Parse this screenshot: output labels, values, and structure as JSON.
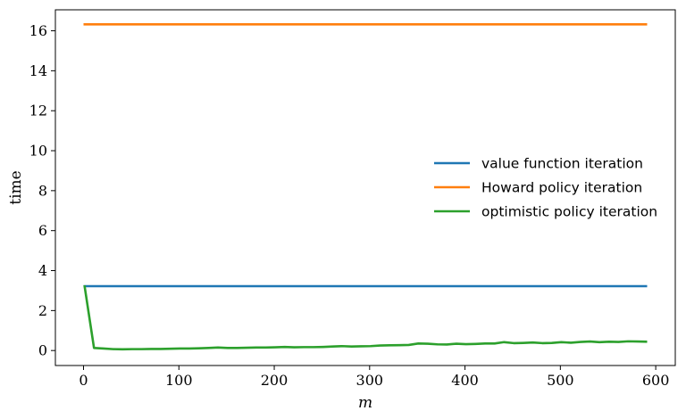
{
  "chart_data": {
    "type": "line",
    "title": "",
    "xlabel": "m",
    "ylabel": "time",
    "xlim": [
      -29.5,
      620.5
    ],
    "ylim": [
      -0.75,
      17.05
    ],
    "xticks": [
      0,
      100,
      200,
      300,
      400,
      500,
      600
    ],
    "yticks": [
      0,
      2,
      4,
      6,
      8,
      10,
      12,
      14,
      16
    ],
    "grid": false,
    "legend_position": "center-right",
    "series": [
      {
        "name": "value function iteration",
        "color": "#1f77b4",
        "x": [
          0,
          591
        ],
        "y": [
          3.22,
          3.22
        ]
      },
      {
        "name": "Howard policy iteration",
        "color": "#ff7f0e",
        "x": [
          0,
          591
        ],
        "y": [
          16.32,
          16.32
        ]
      },
      {
        "name": "optimistic policy iteration",
        "color": "#2ca02c",
        "x": [
          1,
          11,
          21,
          31,
          41,
          51,
          61,
          71,
          81,
          91,
          101,
          111,
          121,
          131,
          141,
          151,
          161,
          171,
          181,
          191,
          201,
          211,
          221,
          231,
          241,
          251,
          261,
          271,
          281,
          291,
          301,
          311,
          321,
          331,
          341,
          351,
          361,
          371,
          381,
          391,
          401,
          411,
          421,
          431,
          441,
          451,
          461,
          471,
          481,
          491,
          501,
          511,
          521,
          531,
          541,
          551,
          561,
          571,
          581,
          591
        ],
        "y": [
          3.26,
          0.13,
          0.1,
          0.07,
          0.06,
          0.07,
          0.07,
          0.08,
          0.08,
          0.09,
          0.1,
          0.1,
          0.11,
          0.13,
          0.15,
          0.13,
          0.13,
          0.14,
          0.15,
          0.15,
          0.16,
          0.18,
          0.16,
          0.17,
          0.17,
          0.18,
          0.2,
          0.22,
          0.2,
          0.21,
          0.22,
          0.25,
          0.26,
          0.27,
          0.28,
          0.35,
          0.34,
          0.31,
          0.3,
          0.34,
          0.32,
          0.33,
          0.35,
          0.35,
          0.42,
          0.37,
          0.38,
          0.4,
          0.37,
          0.38,
          0.42,
          0.39,
          0.43,
          0.45,
          0.42,
          0.44,
          0.43,
          0.46,
          0.45,
          0.44
        ]
      }
    ]
  }
}
